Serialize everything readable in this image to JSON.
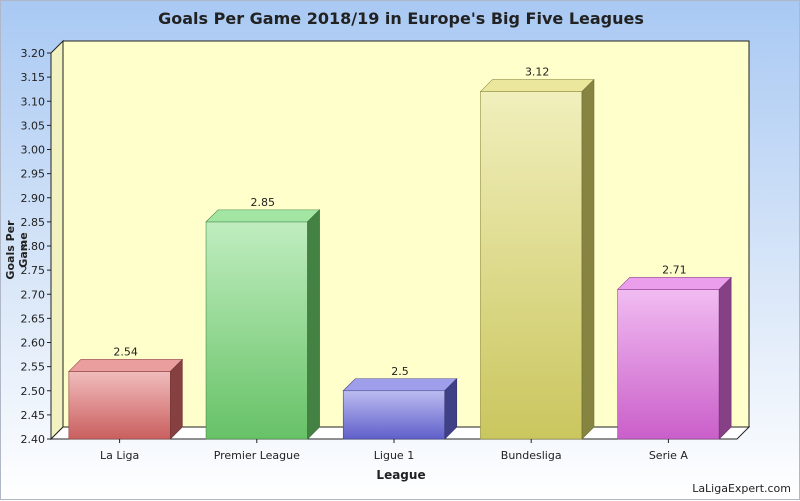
{
  "chart_data": {
    "type": "bar",
    "title": "Goals Per Game 2018/19 in Europe's Big Five Leagues",
    "xlabel": "League",
    "ylabel": "Goals Per Game",
    "categories": [
      "La Liga",
      "Premier League",
      "Ligue 1",
      "Bundesliga",
      "Serie A"
    ],
    "values": [
      2.54,
      2.85,
      2.5,
      3.12,
      2.71
    ],
    "value_labels": [
      "2.54",
      "2.85",
      "2.5",
      "3.12",
      "2.71"
    ],
    "colors": [
      "#e06a6a",
      "#72d872",
      "#6a6ae0",
      "#e0dc6a",
      "#e06ae0"
    ],
    "ylim": [
      2.4,
      3.2
    ],
    "y_ticks": [
      "2.40",
      "2.45",
      "2.50",
      "2.55",
      "2.60",
      "2.65",
      "2.70",
      "2.75",
      "2.80",
      "2.85",
      "2.90",
      "2.95",
      "3.00",
      "3.05",
      "3.10",
      "3.15",
      "3.20"
    ],
    "grid": false,
    "style": "3d"
  },
  "footer": {
    "source": "LaLigaExpert.com"
  }
}
